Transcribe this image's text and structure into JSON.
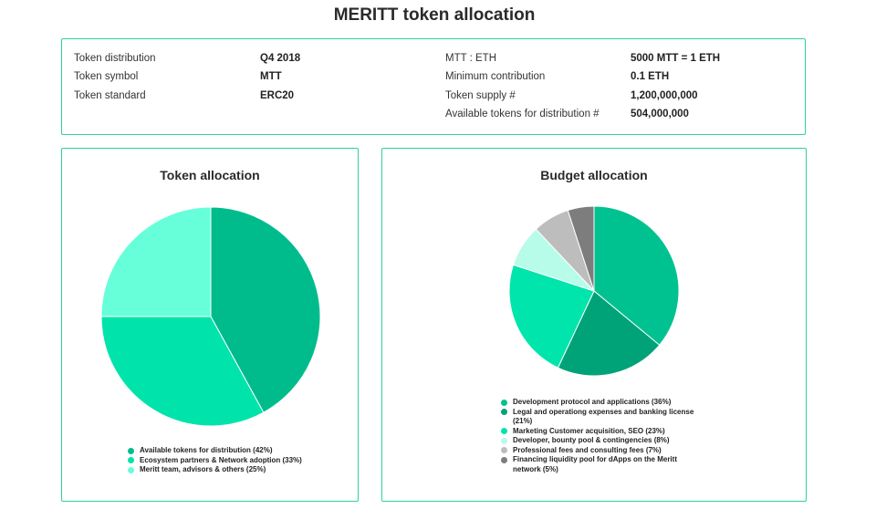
{
  "title": "MERITT token allocation",
  "info": {
    "left": [
      {
        "label": "Token distribution",
        "value": "Q4 2018"
      },
      {
        "label": "Token symbol",
        "value": "MTT"
      },
      {
        "label": "Token standard",
        "value": "ERC20"
      }
    ],
    "right": [
      {
        "label": "MTT : ETH",
        "value": "5000 MTT = 1 ETH"
      },
      {
        "label": "Minimum contribution",
        "value": "0.1 ETH"
      },
      {
        "label": "Token supply #",
        "value": "1,200,000,000"
      },
      {
        "label": "Available tokens for distribution #",
        "value": "504,000,000"
      }
    ]
  },
  "chart_data": [
    {
      "type": "pie",
      "title": "Token allocation",
      "categories": [
        "Available tokens for distribution (42%)",
        "Ecosystem partners & Network adoption (33%)",
        "Meritt team, advisors & others (25%)"
      ],
      "values": [
        42,
        33,
        25
      ],
      "colors": [
        "#00bc8c",
        "#00e4ab",
        "#66ffd9"
      ],
      "legend_position": "bottom"
    },
    {
      "type": "pie",
      "title": "Budget allocation",
      "categories": [
        "Development protocol and applications (36%)",
        "Legal and operationg expenses and banking license (21%)",
        "Marketing Customer acquisition, SEO (23%)",
        "Developer, bounty pool & contingencies (8%)",
        "Professional fees and consulting fees (7%)",
        "Financing liquidity pool for dApps on the Meritt network (5%)"
      ],
      "values": [
        36,
        21,
        23,
        8,
        7,
        5
      ],
      "colors": [
        "#00c291",
        "#00a378",
        "#00e5ab",
        "#b6fce9",
        "#bdbdbd",
        "#7d7d7d"
      ],
      "legend_position": "bottom"
    }
  ]
}
